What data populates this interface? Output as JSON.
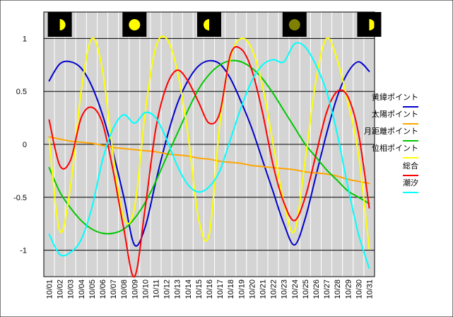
{
  "chart_data": {
    "type": "line",
    "x": [
      "10/01",
      "10/02",
      "10/03",
      "10/04",
      "10/05",
      "10/06",
      "10/07",
      "10/08",
      "10/09",
      "10/10",
      "10/11",
      "10/12",
      "10/13",
      "10/14",
      "10/15",
      "10/16",
      "10/17",
      "10/18",
      "10/19",
      "10/20",
      "10/21",
      "10/22",
      "10/23",
      "10/24",
      "10/25",
      "10/26",
      "10/27",
      "10/28",
      "10/29",
      "10/30",
      "10/31"
    ],
    "yticks": [
      1,
      0.5,
      0,
      -0.5,
      -1
    ],
    "ytick_labels": [
      "1",
      "0.5",
      "0",
      "-0.5",
      "-1"
    ],
    "ylim": [
      -1.25,
      1.25
    ],
    "grid": true,
    "legend_position": "right",
    "moon_phases": [
      {
        "day": "10/02",
        "phase": "first-quarter"
      },
      {
        "day": "10/09",
        "phase": "full"
      },
      {
        "day": "10/16",
        "phase": "last-quarter"
      },
      {
        "day": "10/24",
        "phase": "new"
      },
      {
        "day": "10/31",
        "phase": "first-quarter"
      }
    ],
    "series": [
      {
        "name": "黄緯ポイント",
        "color": "#0000cc",
        "values": [
          0.6,
          0.76,
          0.78,
          0.72,
          0.55,
          0.28,
          -0.08,
          -0.5,
          -0.95,
          -0.78,
          -0.35,
          0.05,
          0.38,
          0.6,
          0.74,
          0.79,
          0.76,
          0.62,
          0.4,
          0.15,
          -0.15,
          -0.45,
          -0.75,
          -0.95,
          -0.7,
          -0.3,
          0.1,
          0.45,
          0.68,
          0.78,
          0.69
        ]
      },
      {
        "name": "太陽ポイント",
        "color": "#ffa500",
        "values": [
          0.07,
          0.05,
          0.03,
          0.02,
          0.01,
          -0.01,
          -0.03,
          -0.04,
          -0.05,
          -0.06,
          -0.07,
          -0.09,
          -0.1,
          -0.11,
          -0.13,
          -0.14,
          -0.16,
          -0.17,
          -0.18,
          -0.2,
          -0.21,
          -0.22,
          -0.23,
          -0.24,
          -0.26,
          -0.27,
          -0.28,
          -0.3,
          -0.33,
          -0.35,
          -0.37
        ]
      },
      {
        "name": "月距離ポイント",
        "color": "#00c800",
        "values": [
          -0.22,
          -0.45,
          -0.6,
          -0.72,
          -0.8,
          -0.84,
          -0.84,
          -0.8,
          -0.7,
          -0.55,
          -0.35,
          -0.12,
          0.1,
          0.32,
          0.52,
          0.66,
          0.75,
          0.79,
          0.78,
          0.72,
          0.62,
          0.48,
          0.32,
          0.16,
          0.0,
          -0.12,
          -0.24,
          -0.34,
          -0.44,
          -0.5,
          -0.56
        ]
      },
      {
        "name": "位相ポイント",
        "color": "#ffff00",
        "values": [
          0.05,
          -0.82,
          -0.4,
          0.5,
          1.0,
          0.7,
          -0.1,
          -0.7,
          -0.6,
          0.3,
          0.92,
          1.0,
          0.7,
          0.1,
          -0.7,
          -0.85,
          0.2,
          0.82,
          1.0,
          0.9,
          0.55,
          0.0,
          -0.55,
          -0.82,
          -0.15,
          0.6,
          1.0,
          0.8,
          0.4,
          -0.1,
          -0.99
        ]
      },
      {
        "name": "総合",
        "color": "#ff0000",
        "values": [
          0.23,
          -0.2,
          -0.15,
          0.25,
          0.35,
          0.2,
          -0.25,
          -0.8,
          -1.25,
          -0.6,
          0.15,
          0.55,
          0.7,
          0.6,
          0.4,
          0.2,
          0.3,
          0.85,
          0.9,
          0.7,
          0.3,
          -0.2,
          -0.55,
          -0.72,
          -0.5,
          -0.1,
          0.3,
          0.5,
          0.45,
          0.1,
          -0.6
        ]
      },
      {
        "name": "潮汐",
        "color": "#00ffff",
        "values": [
          -0.85,
          -1.04,
          -1.02,
          -0.9,
          -0.6,
          -0.15,
          0.15,
          0.28,
          0.2,
          0.3,
          0.25,
          0.05,
          -0.2,
          -0.38,
          -0.45,
          -0.4,
          -0.25,
          0.05,
          0.35,
          0.6,
          0.75,
          0.8,
          0.78,
          0.95,
          0.92,
          0.75,
          0.5,
          0.1,
          -0.4,
          -0.85,
          -1.17
        ]
      }
    ]
  }
}
